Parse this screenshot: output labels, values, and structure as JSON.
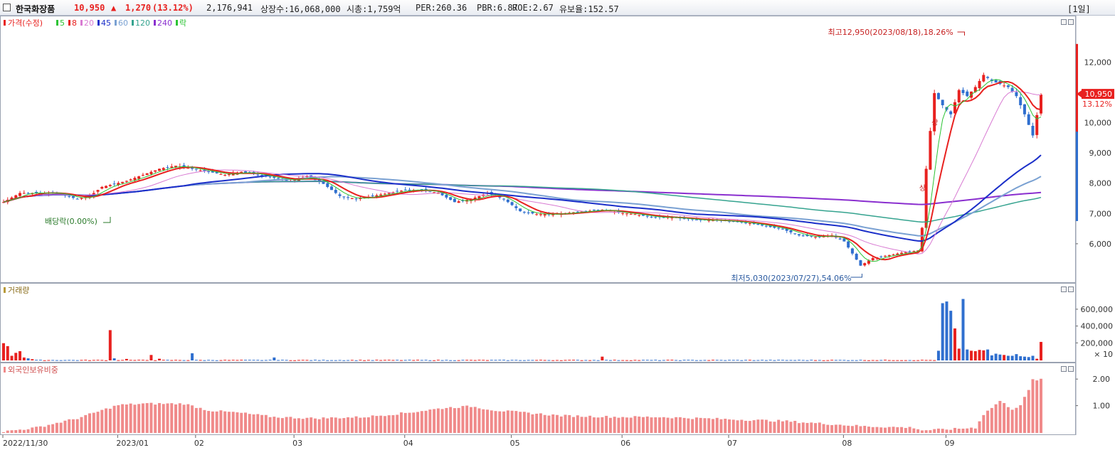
{
  "header": {
    "stock_name": "한국화장품",
    "price": "10,950",
    "change_arrow": "▲",
    "change": "1,270",
    "change_pct": "(13.12%)",
    "volume": "2,176,941",
    "listed_shares": "상장수:16,068,000",
    "market_cap": "시총:1,759억",
    "per": "PER:260.36",
    "pbr": "PBR:6.87",
    "roe": "ROE:2.67",
    "float_ratio": "유보율:152.57",
    "period": "[1일]"
  },
  "colors": {
    "up": "#e8211f",
    "down": "#2f6fcf",
    "ma5": "#2cc334",
    "ma8": "#e8211f",
    "ma20": "#d87ad2",
    "ma45": "#1b2fc9",
    "ma60": "#7aa1d2",
    "ma120": "#35a38f",
    "ma240": "#8a2fcf",
    "foreign": "#f08a8a"
  },
  "price_legend": {
    "label": "가격(수정)",
    "items": [
      "5",
      "8",
      "20",
      "45",
      "60",
      "120",
      "240",
      "락"
    ]
  },
  "annotations": {
    "high": "최고12,950(2023/08/18),18.26%",
    "low": "최저5,030(2023/07/27),54.06%",
    "ex_rights": "배당락(0.00%)",
    "limit_up_1": "상",
    "limit_up_2": "상"
  },
  "price_tag": {
    "value": "10,950",
    "pct": "13.12%"
  },
  "volume_legend": "거래량",
  "foreign_legend": "외국인보유비중",
  "volume_unit": "× 10",
  "chart_data": [
    {
      "type": "candlestick",
      "title": "한국화장품",
      "x_labels": [
        "2022/11/30",
        "2023/01",
        "02",
        "03",
        "04",
        "05",
        "06",
        "07",
        "08",
        "09"
      ],
      "y_ticks": [
        "6,000",
        "7,000",
        "8,000",
        "9,000",
        "10,000",
        "11,000",
        "12,000"
      ],
      "ylim": [
        4800,
        13300
      ],
      "anchors": [
        [
          0,
          7400
        ],
        [
          4,
          7700
        ],
        [
          9,
          7700
        ],
        [
          13,
          7700
        ],
        [
          18,
          7500
        ],
        [
          21,
          7600
        ],
        [
          24,
          7900
        ],
        [
          27,
          8000
        ],
        [
          30,
          8100
        ],
        [
          34,
          8300
        ],
        [
          38,
          8500
        ],
        [
          42,
          8600
        ],
        [
          46,
          8500
        ],
        [
          50,
          8400
        ],
        [
          54,
          8300
        ],
        [
          58,
          8400
        ],
        [
          62,
          8300
        ],
        [
          66,
          8200
        ],
        [
          70,
          8100
        ],
        [
          74,
          8250
        ],
        [
          78,
          8000
        ],
        [
          82,
          7600
        ],
        [
          86,
          7500
        ],
        [
          90,
          7600
        ],
        [
          94,
          7700
        ],
        [
          98,
          7800
        ],
        [
          102,
          7800
        ],
        [
          106,
          7700
        ],
        [
          110,
          7400
        ],
        [
          114,
          7500
        ],
        [
          118,
          7700
        ],
        [
          122,
          7500
        ],
        [
          126,
          7100
        ],
        [
          130,
          7000
        ],
        [
          134,
          7000
        ],
        [
          138,
          7050
        ],
        [
          142,
          7100
        ],
        [
          146,
          7150
        ],
        [
          150,
          7050
        ],
        [
          154,
          7000
        ],
        [
          158,
          6900
        ],
        [
          162,
          6900
        ],
        [
          166,
          6850
        ],
        [
          170,
          6800
        ],
        [
          174,
          6800
        ],
        [
          178,
          6750
        ],
        [
          182,
          6700
        ],
        [
          186,
          6600
        ],
        [
          190,
          6500
        ],
        [
          194,
          6300
        ],
        [
          198,
          6250
        ],
        [
          202,
          6300
        ],
        [
          205,
          6100
        ],
        [
          207,
          5700
        ],
        [
          209,
          5300
        ],
        [
          212,
          5550
        ],
        [
          216,
          5650
        ],
        [
          220,
          5750
        ],
        [
          223,
          5800
        ],
        [
          224,
          6550
        ],
        [
          225,
          8500
        ],
        [
          227,
          11000
        ],
        [
          229,
          10600
        ],
        [
          231,
          10300
        ],
        [
          233,
          11100
        ],
        [
          235,
          10900
        ],
        [
          237,
          11200
        ],
        [
          239,
          11600
        ],
        [
          241,
          11400
        ],
        [
          243,
          11300
        ],
        [
          245,
          11200
        ],
        [
          247,
          10900
        ],
        [
          249,
          10300
        ],
        [
          251,
          9600
        ],
        [
          253,
          10950
        ]
      ],
      "bar_count": 254,
      "high_point": {
        "x": "2023/08/18",
        "value": 12950
      },
      "low_point": {
        "x": "2023/07/27",
        "value": 5030
      }
    },
    {
      "type": "bar",
      "title": "거래량",
      "y_ticks": [
        "200,000",
        "400,000",
        "600,000"
      ],
      "ylim": [
        0,
        760000
      ],
      "spikes": [
        [
          0,
          205000
        ],
        [
          1,
          170000
        ],
        [
          2,
          55000
        ],
        [
          3,
          90000
        ],
        [
          4,
          110000
        ],
        [
          5,
          35000
        ],
        [
          6,
          25000
        ],
        [
          7,
          15000
        ],
        [
          26,
          360000
        ],
        [
          27,
          25000
        ],
        [
          30,
          18000
        ],
        [
          36,
          65000
        ],
        [
          38,
          20000
        ],
        [
          46,
          85000
        ],
        [
          66,
          35000
        ],
        [
          146,
          45000
        ],
        [
          228,
          115000
        ],
        [
          229,
          680000
        ],
        [
          230,
          700000
        ],
        [
          231,
          590000
        ],
        [
          232,
          380000
        ],
        [
          233,
          140000
        ],
        [
          234,
          730000
        ],
        [
          235,
          130000
        ],
        [
          236,
          115000
        ],
        [
          237,
          110000
        ],
        [
          238,
          125000
        ],
        [
          239,
          120000
        ],
        [
          240,
          130000
        ],
        [
          241,
          60000
        ],
        [
          242,
          80000
        ],
        [
          243,
          70000
        ],
        [
          244,
          65000
        ],
        [
          245,
          55000
        ],
        [
          246,
          55000
        ],
        [
          247,
          75000
        ],
        [
          248,
          50000
        ],
        [
          249,
          45000
        ],
        [
          250,
          40000
        ],
        [
          251,
          55000
        ],
        [
          252,
          20000
        ],
        [
          253,
          220000
        ]
      ]
    },
    {
      "type": "bar",
      "title": "외국인보유비중",
      "y_ticks": [
        "1.00",
        "2.00"
      ],
      "ylim": [
        0,
        2.3
      ],
      "anchors": [
        [
          0,
          0.05
        ],
        [
          8,
          0.2
        ],
        [
          18,
          0.55
        ],
        [
          28,
          1.05
        ],
        [
          34,
          1.1
        ],
        [
          44,
          1.1
        ],
        [
          50,
          0.85
        ],
        [
          58,
          0.75
        ],
        [
          66,
          0.6
        ],
        [
          76,
          0.55
        ],
        [
          88,
          0.6
        ],
        [
          98,
          0.75
        ],
        [
          108,
          0.95
        ],
        [
          114,
          1.0
        ],
        [
          120,
          0.85
        ],
        [
          128,
          0.75
        ],
        [
          136,
          0.65
        ],
        [
          150,
          0.6
        ],
        [
          160,
          0.6
        ],
        [
          170,
          0.55
        ],
        [
          180,
          0.5
        ],
        [
          190,
          0.45
        ],
        [
          200,
          0.35
        ],
        [
          210,
          0.25
        ],
        [
          222,
          0.2
        ],
        [
          224,
          0.1
        ],
        [
          232,
          0.15
        ],
        [
          237,
          0.2
        ],
        [
          239,
          0.7
        ],
        [
          243,
          1.2
        ],
        [
          246,
          0.9
        ],
        [
          248,
          1.05
        ],
        [
          250,
          1.6
        ],
        [
          251,
          2.0
        ],
        [
          253,
          2.0
        ]
      ]
    }
  ]
}
